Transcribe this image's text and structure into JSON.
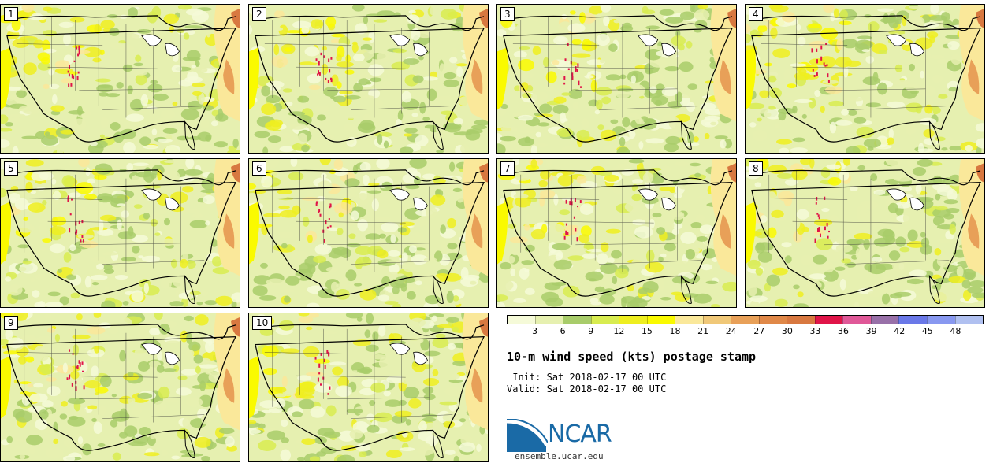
{
  "members": [
    {
      "label": "1"
    },
    {
      "label": "2"
    },
    {
      "label": "3"
    },
    {
      "label": "4"
    },
    {
      "label": "5"
    },
    {
      "label": "6"
    },
    {
      "label": "7"
    },
    {
      "label": "8"
    },
    {
      "label": "9"
    },
    {
      "label": "10"
    }
  ],
  "colorbar": {
    "ticks": [
      "3",
      "6",
      "9",
      "12",
      "15",
      "18",
      "21",
      "24",
      "27",
      "30",
      "33",
      "36",
      "39",
      "42",
      "45",
      "48"
    ],
    "colors": [
      "#f5fad8",
      "#e6f0b0",
      "#a8cc6a",
      "#d8ec50",
      "#eeee20",
      "#fafa00",
      "#fae89a",
      "#f0c878",
      "#e8a058",
      "#e08848",
      "#d87840",
      "#e01448",
      "#e05898",
      "#9870a8",
      "#6a78e8",
      "#8898f0",
      "#b0c0f0"
    ]
  },
  "title": "10-m wind speed (kts) postage stamp",
  "init_line": " Init: Sat 2018-02-17 00 UTC",
  "valid_line": "Valid: Sat 2018-02-17 00 UTC",
  "logo": {
    "name": "NCAR",
    "url": "ensemble.ucar.edu"
  }
}
